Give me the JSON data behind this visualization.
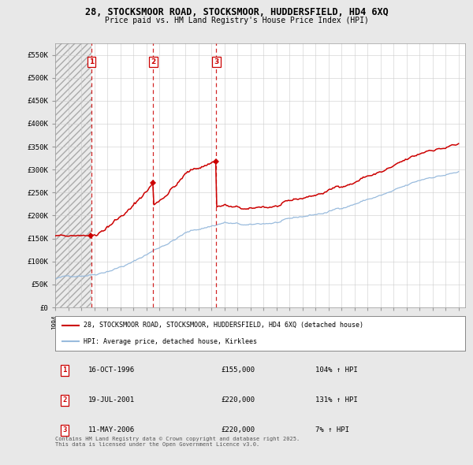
{
  "title": "28, STOCKSMOOR ROAD, STOCKSMOOR, HUDDERSFIELD, HD4 6XQ",
  "subtitle": "Price paid vs. HM Land Registry's House Price Index (HPI)",
  "ylim": [
    0,
    575000
  ],
  "yticks": [
    0,
    50000,
    100000,
    150000,
    200000,
    250000,
    300000,
    350000,
    400000,
    450000,
    500000,
    550000
  ],
  "ytick_labels": [
    "£0",
    "£50K",
    "£100K",
    "£150K",
    "£200K",
    "£250K",
    "£300K",
    "£350K",
    "£400K",
    "£450K",
    "£500K",
    "£550K"
  ],
  "xlim_start": 1994.0,
  "xlim_end": 2025.5,
  "bg_color": "#e8e8e8",
  "plot_bg_color": "#ffffff",
  "grid_color": "#cccccc",
  "sale_line_color": "#cc0000",
  "red_line_color": "#cc0000",
  "blue_line_color": "#99bbdd",
  "sales": [
    {
      "num": 1,
      "date": "16-OCT-1996",
      "date_x": 1996.79,
      "price": 155000,
      "pct": "104%",
      "dir": "↑"
    },
    {
      "num": 2,
      "date": "19-JUL-2001",
      "date_x": 2001.54,
      "price": 220000,
      "pct": "131%",
      "dir": "↑"
    },
    {
      "num": 3,
      "date": "11-MAY-2006",
      "date_x": 2006.37,
      "price": 220000,
      "pct": "7%",
      "dir": "↑"
    }
  ],
  "legend_line1": "28, STOCKSMOOR ROAD, STOCKSMOOR, HUDDERSFIELD, HD4 6XQ (detached house)",
  "legend_line2": "HPI: Average price, detached house, Kirklees",
  "footer": "Contains HM Land Registry data © Crown copyright and database right 2025.\nThis data is licensed under the Open Government Licence v3.0."
}
